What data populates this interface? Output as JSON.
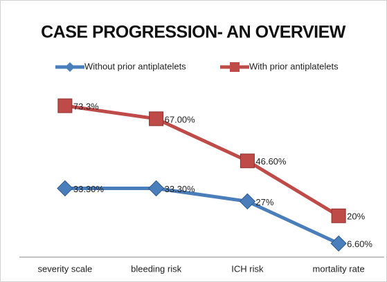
{
  "chart_data": {
    "type": "line",
    "title": "CASE PROGRESSION- AN OVERVIEW",
    "categories": [
      "severity scale",
      "bleeding risk",
      "ICH risk",
      "mortality rate"
    ],
    "series": [
      {
        "name": "Without prior antiplatelets",
        "color": "#4a7ebb",
        "marker": "diamond",
        "values": [
          33.3,
          33.3,
          27,
          6.6
        ],
        "value_labels": [
          "33.30%",
          "33.30%",
          "27%",
          "6.60%"
        ]
      },
      {
        "name": "With prior antiplatelets",
        "color": "#be4b48",
        "marker": "square",
        "values": [
          73.3,
          67,
          46.6,
          20
        ],
        "value_labels": [
          "73.3%",
          "67.00%",
          "46.60%",
          "20%"
        ]
      }
    ],
    "ylim": [
      0,
      80
    ],
    "legend": "top"
  }
}
